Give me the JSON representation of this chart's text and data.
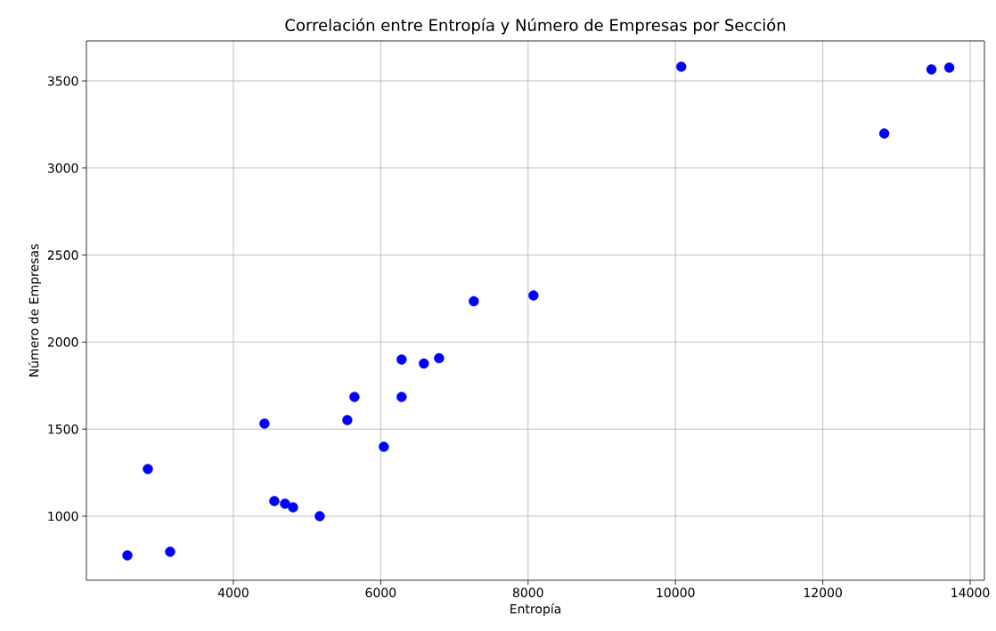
{
  "chart_data": {
    "type": "scatter",
    "title": "Correlación entre Entropía y Número de Empresas por Sección",
    "xlabel": "Entropía",
    "ylabel": "Número de Empresas",
    "x": [
      2562,
      2840,
      3142,
      4423,
      4556,
      4701,
      4810,
      5172,
      5547,
      5644,
      6042,
      6284,
      6284,
      6586,
      6792,
      7263,
      8073,
      10079,
      12834,
      13474,
      13716
    ],
    "values": [
      775,
      1271,
      796,
      1532,
      1087,
      1072,
      1051,
      1000,
      1552,
      1685,
      1399,
      1900,
      1685,
      1877,
      1908,
      2235,
      2268,
      3582,
      3198,
      3567,
      3577
    ],
    "color": "#0000ff",
    "marker": "circle",
    "grid": true,
    "xlim": [
      2006,
      14193
    ],
    "ylim": [
      632,
      3730
    ],
    "xticks": [
      4000,
      6000,
      8000,
      10000,
      12000,
      14000
    ],
    "yticks": [
      1000,
      1500,
      2000,
      2500,
      3000,
      3500
    ]
  }
}
